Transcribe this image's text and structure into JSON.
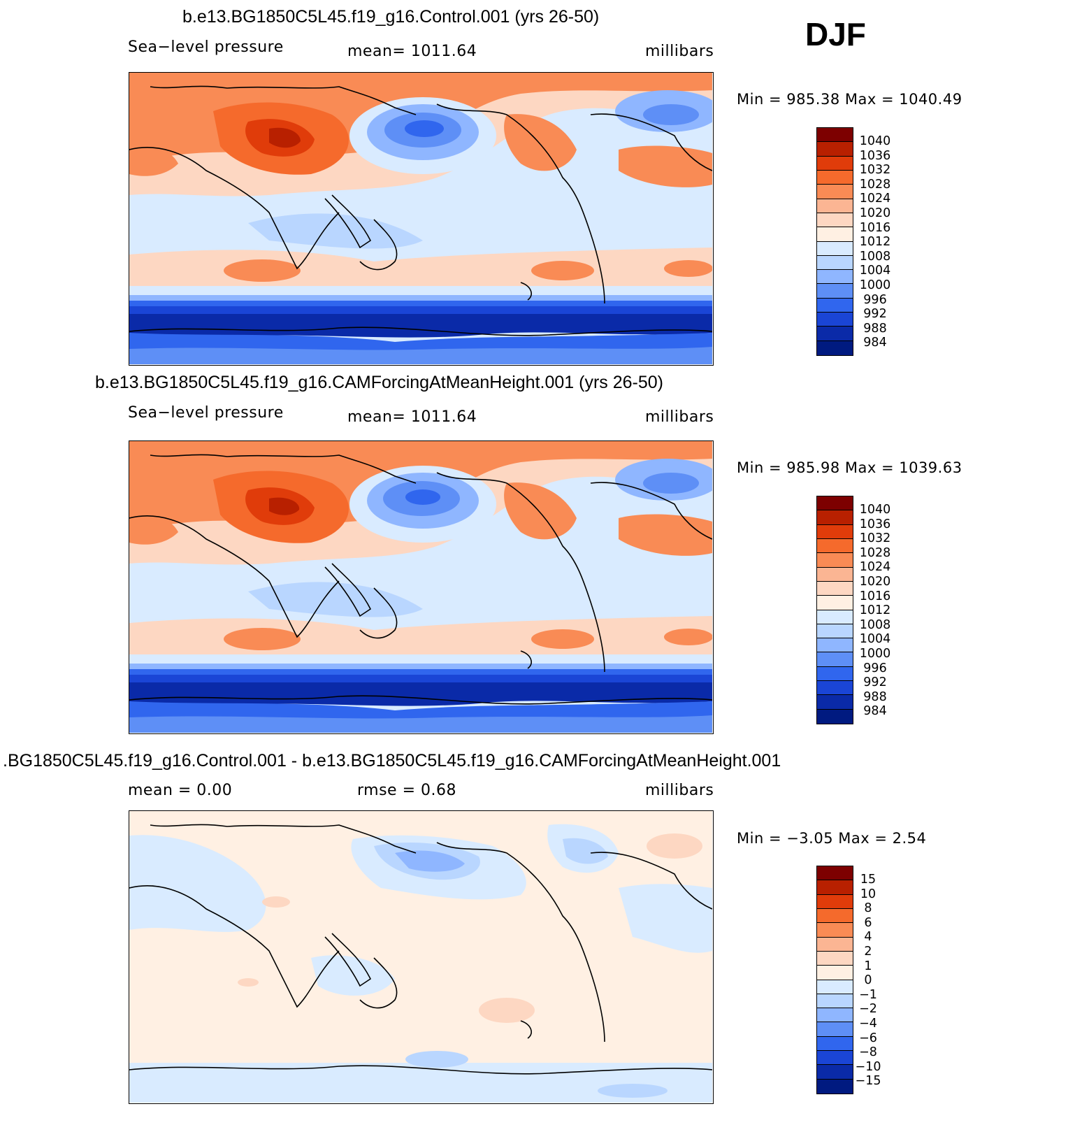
{
  "season": "DJF",
  "panels": [
    {
      "title": "b.e13.BG1850C5L45.f19_g16.Control.001 (yrs 26-50)",
      "left": "Sea−level  pressure",
      "center": "mean=  1011.64",
      "right": "millibars",
      "minmax": "Min  =  985.38  Max  =  1040.49"
    },
    {
      "title": "b.e13.BG1850C5L45.f19_g16.CAMForcingAtMeanHeight.001 (yrs 26-50)",
      "left": "Sea−level  pressure",
      "center": "mean=  1011.64",
      "right": "millibars",
      "minmax": "Min  =  985.98  Max  =  1039.63"
    },
    {
      "title": ".BG1850C5L45.f19_g16.Control.001 - b.e13.BG1850C5L45.f19_g16.CAMForcingAtMeanHeight.001",
      "left": "mean  =     0.00",
      "center": "rmse  =     0.68",
      "right": "millibars",
      "minmax": "Min  =    −3.05  Max  =      2.54"
    }
  ],
  "colorbars": {
    "slp": {
      "labels": [
        "1040",
        "1036",
        "1032",
        "1028",
        "1024",
        "1020",
        "1016",
        "1012",
        "1008",
        "1004",
        "1000",
        "996",
        "992",
        "988",
        "984"
      ],
      "colors": [
        "#7d0000",
        "#b82000",
        "#e03c0a",
        "#f56a2c",
        "#f98b55",
        "#fbb593",
        "#fdd7c2",
        "#fff0e3",
        "#d9ebff",
        "#b9d6ff",
        "#8fb6ff",
        "#5e8ff6",
        "#3066ee",
        "#1a45d6",
        "#0a2aa8",
        "#001a80"
      ]
    },
    "diff": {
      "labels": [
        "15",
        "10",
        "8",
        "6",
        "4",
        "2",
        "1",
        "0",
        "−1",
        "−2",
        "−4",
        "−6",
        "−8",
        "−10",
        "−15"
      ],
      "colors": [
        "#7d0000",
        "#b82000",
        "#e03c0a",
        "#f56a2c",
        "#f98b55",
        "#fbb593",
        "#fdd7c2",
        "#fff0e3",
        "#d9ebff",
        "#b9d6ff",
        "#8fb6ff",
        "#5e8ff6",
        "#3066ee",
        "#1a45d6",
        "#0a2aa8",
        "#001a80"
      ]
    }
  }
}
